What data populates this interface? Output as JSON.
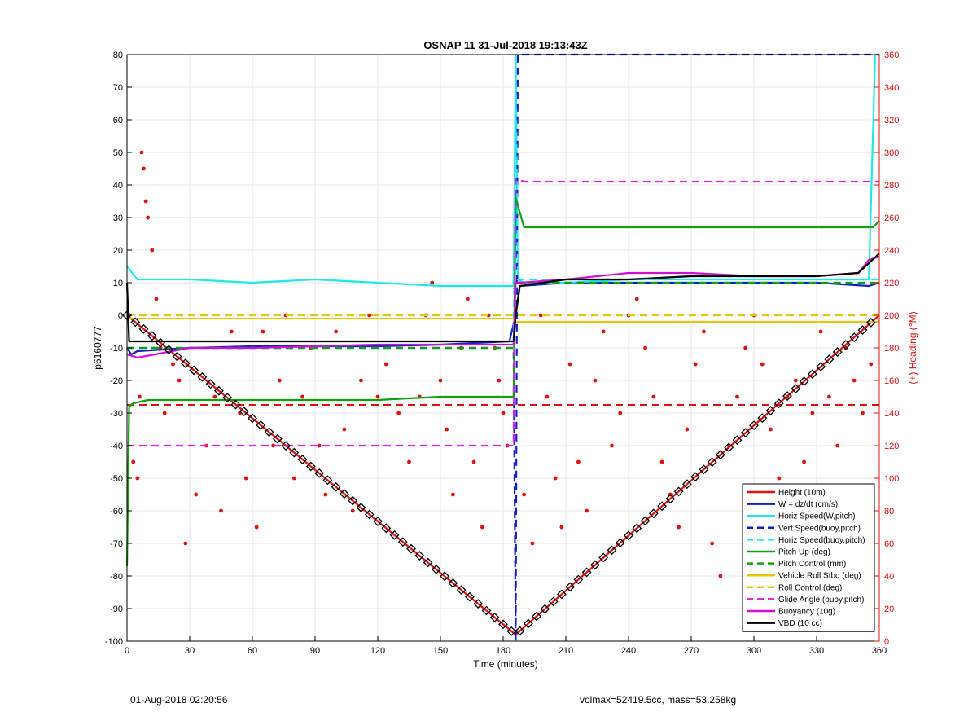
{
  "chart_data": {
    "type": "line",
    "title": "OSNAP 11 31-Jul-2018 19:13:43Z",
    "xlabel": "Time (minutes)",
    "ylabel": "p6160777",
    "y2label": "(+) Heading (°M)",
    "xlim": [
      0,
      360
    ],
    "ylim": [
      -100,
      80
    ],
    "y2lim": [
      0,
      360
    ],
    "xticks": [
      0,
      30,
      60,
      90,
      120,
      150,
      180,
      210,
      240,
      270,
      300,
      330,
      360
    ],
    "yticks": [
      -100,
      -90,
      -80,
      -70,
      -60,
      -50,
      -40,
      -30,
      -20,
      -10,
      0,
      10,
      20,
      30,
      40,
      50,
      60,
      70,
      80
    ],
    "y2ticks": [
      0,
      20,
      40,
      60,
      80,
      100,
      120,
      140,
      160,
      180,
      200,
      220,
      240,
      260,
      280,
      300,
      320,
      340,
      360
    ],
    "grid": true,
    "legend_position": "bottom-right",
    "colors": {
      "height": "#e01010",
      "w": "#1020c8",
      "horiz": "#20e8e8",
      "pitch": "#10a010",
      "roll": "#e0c810",
      "glide": "#e020e0",
      "buoyancy": "#d010d0",
      "vbd": "#000000",
      "heading": "#e01010"
    },
    "series": [
      {
        "name": "Height (10m)",
        "color": "#e01010",
        "style": "solid",
        "x": [
          0,
          186,
          360
        ],
        "y": [
          0,
          -98,
          0
        ]
      },
      {
        "name": "W = dz/dt (cm/s)",
        "color": "#1020c8",
        "style": "solid",
        "x": [
          0,
          2,
          5,
          30,
          60,
          90,
          120,
          150,
          183,
          186,
          188,
          210,
          240,
          270,
          300,
          330,
          355,
          360
        ],
        "y": [
          -10,
          -12,
          -11,
          -10,
          -9.5,
          -9.5,
          -9.5,
          -9,
          -8,
          0,
          9,
          10,
          10,
          10,
          10,
          10,
          9,
          10
        ]
      },
      {
        "name": "Horiz Speed(W,pitch)",
        "color": "#20e8e8",
        "style": "solid",
        "x": [
          0,
          5,
          30,
          60,
          90,
          120,
          150,
          180,
          185,
          186,
          187,
          190,
          210,
          240,
          270,
          300,
          330,
          355,
          358,
          360
        ],
        "y": [
          15,
          11,
          11,
          10,
          11,
          10,
          9,
          9,
          9,
          80,
          11,
          10,
          10,
          11,
          11,
          11,
          11,
          11,
          80,
          80
        ]
      },
      {
        "name": "Vert Speed(buoy,pitch)",
        "color": "#1020c8",
        "style": "dash",
        "x": [
          0,
          185,
          186,
          187,
          360
        ],
        "y": [
          -10,
          -10,
          -100,
          80,
          80
        ]
      },
      {
        "name": "Horiz Speed(buoy,pitch)",
        "color": "#20e8e8",
        "style": "dash",
        "x": [
          0,
          185,
          186,
          187,
          360
        ],
        "y": [
          -10,
          -10,
          80,
          11,
          11
        ]
      },
      {
        "name": "Pitch Up (deg)",
        "color": "#10a010",
        "style": "solid",
        "x": [
          0,
          1,
          3,
          10,
          30,
          60,
          90,
          120,
          150,
          180,
          185,
          186,
          190,
          210,
          240,
          270,
          300,
          330,
          357,
          360
        ],
        "y": [
          -77,
          -28,
          -27,
          -26,
          -26,
          -26,
          -26,
          -26,
          -25,
          -25,
          -25,
          36,
          27,
          27,
          27,
          27,
          27,
          27,
          27,
          29
        ]
      },
      {
        "name": "Pitch Control (mm)",
        "color": "#10a010",
        "style": "dash",
        "x": [
          0,
          185,
          186,
          360
        ],
        "y": [
          -10,
          -10,
          10,
          10
        ]
      },
      {
        "name": "Vehicle Roll Stbd (deg)",
        "color": "#e0c810",
        "style": "solid",
        "x": [
          0,
          30,
          60,
          90,
          120,
          150,
          185,
          186,
          210,
          240,
          270,
          300,
          330,
          360
        ],
        "y": [
          -1,
          -1,
          -1,
          -1,
          -1,
          -1,
          -1,
          -2,
          -2,
          -2,
          -2,
          -2,
          -2,
          -2
        ]
      },
      {
        "name": "Roll Control (deg)",
        "color": "#e0c810",
        "style": "dash",
        "x": [
          0,
          185,
          186,
          360
        ],
        "y": [
          0,
          0,
          0,
          0
        ]
      },
      {
        "name": "Glide Angle (buoy,pitch)",
        "color": "#e020e0",
        "style": "dash",
        "x": [
          0,
          185,
          186,
          190,
          210,
          240,
          270,
          300,
          330,
          360
        ],
        "y": [
          -40,
          -40,
          42,
          41,
          41,
          41,
          41,
          41,
          41,
          41
        ]
      },
      {
        "name": "Buoyancy (10g)",
        "color": "#d010d0",
        "style": "solid",
        "x": [
          0,
          5,
          30,
          60,
          90,
          120,
          150,
          185,
          186,
          188,
          210,
          240,
          270,
          300,
          330,
          350,
          355,
          360
        ],
        "y": [
          -12,
          -13,
          -10,
          -10,
          -9.5,
          -9,
          -9,
          -9,
          10,
          10,
          11,
          13,
          13,
          12,
          12,
          13,
          17,
          18
        ]
      },
      {
        "name": "VBD (10 cc)",
        "color": "#000000",
        "style": "solid",
        "x": [
          0,
          1,
          2,
          185,
          186,
          188,
          210,
          240,
          270,
          300,
          330,
          350,
          360
        ],
        "y": [
          10,
          -8,
          -8,
          -8,
          0,
          9,
          11,
          11,
          12,
          12,
          12,
          13,
          19
        ]
      }
    ],
    "heading_points": {
      "name": "Heading (°M)",
      "color": "#e01010",
      "y_axis": "right",
      "x": [
        3,
        5,
        6,
        7,
        8,
        9,
        10,
        12,
        14,
        16,
        18,
        22,
        25,
        28,
        33,
        38,
        42,
        45,
        50,
        54,
        57,
        62,
        65,
        70,
        73,
        76,
        80,
        84,
        88,
        92,
        95,
        100,
        104,
        108,
        112,
        116,
        120,
        124,
        130,
        135,
        140,
        143,
        146,
        150,
        153,
        156,
        160,
        163,
        166,
        170,
        173,
        176,
        178,
        180,
        182,
        190,
        194,
        198,
        201,
        205,
        208,
        212,
        216,
        220,
        224,
        228,
        232,
        236,
        240,
        244,
        248,
        252,
        256,
        260,
        264,
        268,
        272,
        276,
        280,
        284,
        288,
        292,
        296,
        300,
        304,
        308,
        312,
        316,
        320,
        324,
        328,
        332,
        336,
        340,
        344,
        348,
        352,
        356
      ],
      "y": [
        110,
        100,
        150,
        300,
        290,
        270,
        260,
        240,
        210,
        180,
        140,
        170,
        160,
        60,
        90,
        120,
        150,
        80,
        190,
        140,
        100,
        70,
        190,
        120,
        160,
        200,
        100,
        150,
        180,
        120,
        90,
        190,
        130,
        80,
        160,
        200,
        150,
        170,
        140,
        110,
        150,
        200,
        220,
        160,
        130,
        90,
        180,
        210,
        110,
        70,
        200,
        180,
        160,
        140,
        120,
        90,
        60,
        200,
        150,
        100,
        70,
        170,
        110,
        80,
        160,
        190,
        120,
        140,
        200,
        210,
        180,
        150,
        110,
        90,
        70,
        130,
        170,
        190,
        60,
        40,
        120,
        150,
        180,
        200,
        170,
        130,
        100,
        150,
        160,
        110,
        140,
        190,
        150,
        120,
        180,
        160,
        140,
        170
      ]
    },
    "height_markers_x": [
      0,
      4,
      8,
      12,
      16,
      20,
      24,
      28,
      32,
      36,
      40,
      44,
      48,
      52,
      56,
      60,
      64,
      68,
      72,
      76,
      80,
      84,
      88,
      92,
      96,
      100,
      104,
      108,
      112,
      116,
      120,
      124,
      128,
      132,
      136,
      140,
      144,
      148,
      152,
      156,
      160,
      164,
      168,
      172,
      176,
      180,
      184,
      188,
      192,
      196,
      200,
      204,
      208,
      212,
      216,
      220,
      224,
      228,
      232,
      236,
      240,
      244,
      248,
      252,
      256,
      260,
      264,
      268,
      272,
      276,
      280,
      284,
      288,
      292,
      296,
      300,
      304,
      308,
      312,
      316,
      320,
      324,
      328,
      332,
      336,
      340,
      344,
      348,
      352,
      356
    ],
    "heading_reference": {
      "value": 145,
      "color": "#e01010",
      "style": "dash"
    }
  },
  "footer": {
    "left": "01-Aug-2018 02:20:56",
    "right": "volmax=52419.5cc, mass=53.258kg"
  }
}
